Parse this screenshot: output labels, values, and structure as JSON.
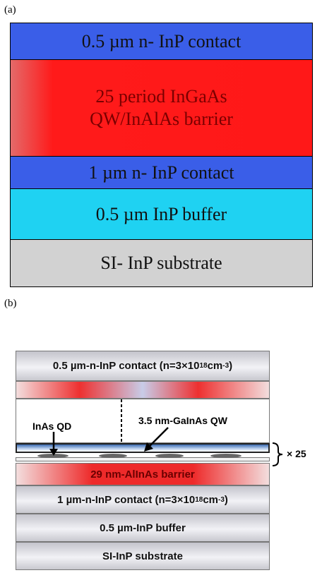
{
  "panel_a": {
    "label": "(a)",
    "layers": [
      {
        "lines": [
          "0.5 µm n- InP contact"
        ]
      },
      {
        "lines": [
          "25 period InGaAs",
          "QW/InAlAs barrier"
        ]
      },
      {
        "lines": [
          "1 µm n- InP contact"
        ]
      },
      {
        "lines": [
          "0.5 µm InP buffer"
        ]
      },
      {
        "lines": [
          "SI- InP substrate"
        ]
      }
    ]
  },
  "panel_b": {
    "label": "(b)",
    "top_contact": [
      "0.5 µm-n-InP contact (n=3×10",
      "18",
      " cm",
      "-3",
      ")"
    ],
    "qd_label": "InAs QD",
    "qw_label": "3.5 nm-GaInAs QW",
    "barrier": "29 nm-AlInAs barrier",
    "repeat": "× 25",
    "bottom_contact": [
      "1 µm-n-InP contact (n=3×10",
      "18",
      " cm",
      "-3",
      ")"
    ],
    "buffer": "0.5 µm-InP buffer",
    "substrate": "SI-InP substrate"
  }
}
